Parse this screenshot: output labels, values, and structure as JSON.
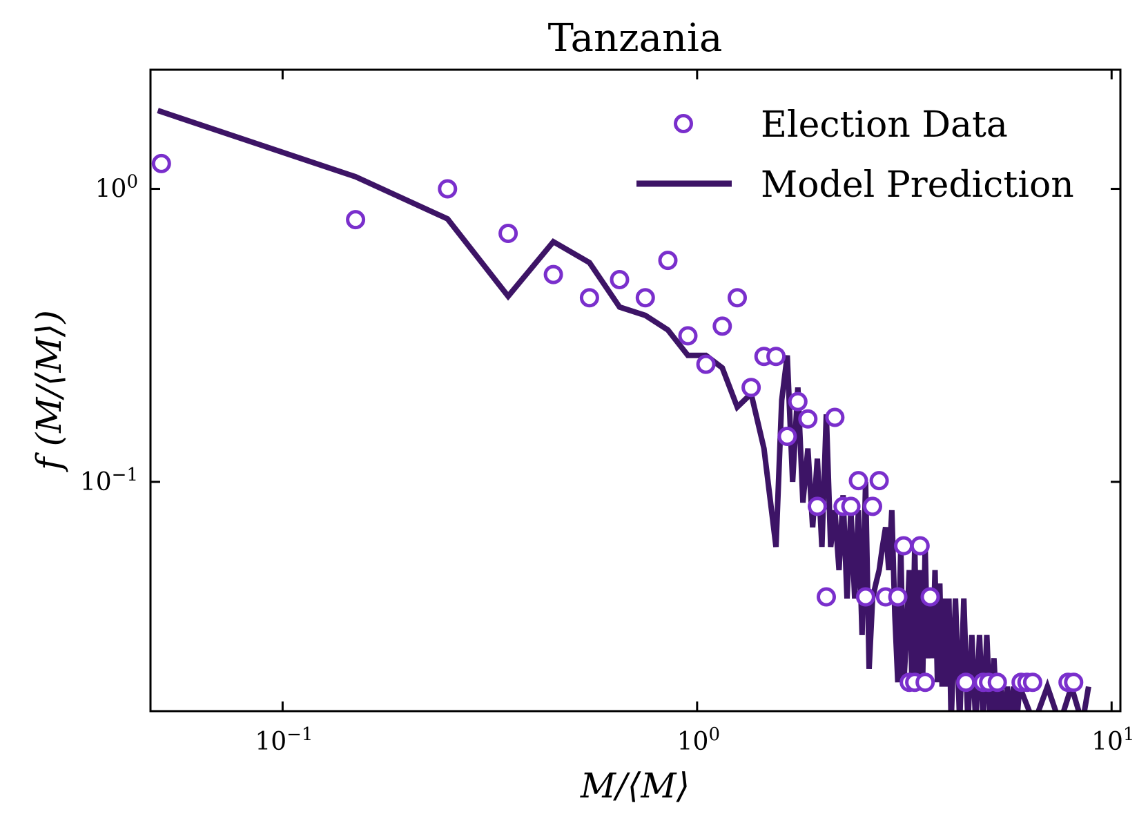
{
  "chart_data": {
    "type": "scatter",
    "title": "Tanzania",
    "xlabel": "M/⟨M⟩",
    "ylabel": "f (M/⟨M⟩)",
    "xscale": "log",
    "yscale": "log",
    "xlim": [
      0.048,
      10.5
    ],
    "ylim": [
      0.0165,
      2.55
    ],
    "xticks": [
      {
        "value": 0.1,
        "base": "10",
        "exp": "−1"
      },
      {
        "value": 1,
        "base": "10",
        "exp": "0"
      },
      {
        "value": 10,
        "base": "10",
        "exp": "1"
      }
    ],
    "yticks": [
      {
        "value": 0.1,
        "base": "10",
        "exp": "−1"
      },
      {
        "value": 1,
        "base": "10",
        "exp": "0"
      }
    ],
    "legend_position": "upper right",
    "series": [
      {
        "name": "Election Data",
        "kind": "scatter",
        "marker": "open-circle",
        "color": "#7a2fcc",
        "x": [
          0.051,
          0.15,
          0.25,
          0.35,
          0.45,
          0.55,
          0.65,
          0.75,
          0.85,
          0.95,
          1.05,
          1.15,
          1.25,
          1.35,
          1.45,
          1.55,
          1.65,
          1.75,
          1.85,
          1.95,
          2.05,
          2.15,
          2.25,
          2.35,
          2.45,
          2.55,
          2.65,
          2.75,
          2.85,
          3.05,
          3.15,
          3.25,
          3.35,
          3.45,
          3.55,
          3.65,
          4.45,
          4.9,
          5.05,
          5.3,
          6.05,
          6.25,
          6.45,
          7.85,
          8.1
        ],
        "y": [
          1.22,
          0.785,
          1.0,
          0.705,
          0.51,
          0.425,
          0.49,
          0.425,
          0.57,
          0.315,
          0.252,
          0.34,
          0.425,
          0.21,
          0.268,
          0.268,
          0.143,
          0.188,
          0.164,
          0.0825,
          0.0405,
          0.166,
          0.0825,
          0.0825,
          0.101,
          0.0405,
          0.0825,
          0.101,
          0.0405,
          0.0405,
          0.0605,
          0.0207,
          0.0207,
          0.0605,
          0.0207,
          0.0405,
          0.0207,
          0.0207,
          0.0207,
          0.0207,
          0.0207,
          0.0207,
          0.0207,
          0.0207,
          0.0207
        ]
      },
      {
        "name": "Model Prediction",
        "kind": "line",
        "color": "#3d1466",
        "x": [
          0.05,
          0.15,
          0.25,
          0.35,
          0.45,
          0.55,
          0.65,
          0.75,
          0.85,
          0.95,
          1.05,
          1.15,
          1.25,
          1.35,
          1.45,
          1.55,
          1.6,
          1.65,
          1.7,
          1.75,
          1.8,
          1.85,
          1.9,
          1.95,
          2.0,
          2.05,
          2.1,
          2.15,
          2.2,
          2.25,
          2.3,
          2.35,
          2.4,
          2.45,
          2.5,
          2.55,
          2.6,
          2.65,
          2.7,
          2.75,
          2.8,
          2.85,
          2.9,
          2.95,
          3.0,
          3.05,
          3.1,
          3.15,
          3.2,
          3.25,
          3.3,
          3.35,
          3.4,
          3.45,
          3.5,
          3.55,
          3.6,
          3.65,
          3.7,
          3.75,
          3.8,
          3.85,
          3.9,
          3.95,
          4.0,
          4.05,
          4.1,
          4.2,
          4.3,
          4.4,
          4.5,
          4.6,
          4.7,
          4.8,
          4.9,
          5.0,
          5.1,
          5.2,
          5.3,
          5.4,
          5.5,
          5.6,
          5.7,
          5.8,
          5.9,
          6.0,
          6.5,
          7.0,
          7.5,
          8.0,
          8.5,
          8.8
        ],
        "y": [
          1.85,
          1.1,
          0.79,
          0.43,
          0.66,
          0.56,
          0.395,
          0.37,
          0.33,
          0.27,
          0.27,
          0.245,
          0.18,
          0.2,
          0.13,
          0.06,
          0.19,
          0.27,
          0.1,
          0.21,
          0.085,
          0.13,
          0.07,
          0.12,
          0.06,
          0.17,
          0.06,
          0.08,
          0.05,
          0.09,
          0.04,
          0.08,
          0.04,
          0.08,
          0.03,
          0.1,
          0.023,
          0.04,
          0.045,
          0.05,
          0.06,
          0.07,
          0.05,
          0.08,
          0.035,
          0.0207,
          0.06,
          0.02,
          0.03,
          0.05,
          0.02,
          0.06,
          0.0207,
          0.05,
          0.0207,
          0.06,
          0.025,
          0.04,
          0.025,
          0.05,
          0.0207,
          0.045,
          0.02,
          0.04,
          0.02,
          0.04,
          0.015,
          0.04,
          0.015,
          0.04,
          0.015,
          0.03,
          0.015,
          0.03,
          0.015,
          0.03,
          0.015,
          0.025,
          0.015,
          0.02,
          0.015,
          0.02,
          0.015,
          0.02,
          0.015,
          0.02,
          0.015,
          0.02,
          0.015,
          0.02,
          0.015,
          0.02
        ]
      }
    ]
  }
}
